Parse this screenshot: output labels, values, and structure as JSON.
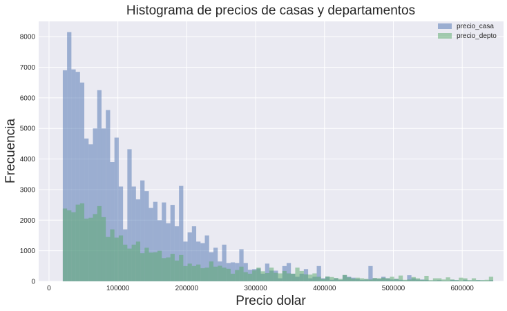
{
  "chart_data": {
    "type": "bar",
    "title": "Histograma de precios de casas y departamentos",
    "xlabel": "Precio dolar",
    "ylabel": "Frecuencia",
    "xlim": [
      -15000,
      660000
    ],
    "ylim": [
      0,
      8500
    ],
    "xticks": [
      0,
      100000,
      200000,
      300000,
      400000,
      500000,
      600000
    ],
    "xtick_labels": [
      "0",
      "100000",
      "200000",
      "300000",
      "400000",
      "500000",
      "600000"
    ],
    "yticks": [
      0,
      1000,
      2000,
      3000,
      4000,
      5000,
      6000,
      7000,
      8000
    ],
    "ytick_labels": [
      "0",
      "1000",
      "2000",
      "3000",
      "4000",
      "5000",
      "6000",
      "7000",
      "8000"
    ],
    "grid": true,
    "legend_position": "top-right",
    "bin_start": 20000,
    "bin_width": 6250,
    "series": [
      {
        "name": "precio_casa",
        "color": "#4c72b0",
        "opacity": 0.5,
        "values": [
          6900,
          8150,
          6930,
          6850,
          6500,
          4670,
          4480,
          5000,
          6250,
          5000,
          5600,
          3900,
          4700,
          3100,
          1700,
          4320,
          3100,
          2680,
          3300,
          2950,
          2400,
          2600,
          2000,
          2580,
          1900,
          2500,
          1800,
          3120,
          1300,
          1600,
          1800,
          1300,
          1250,
          1500,
          950,
          1100,
          650,
          1200,
          600,
          620,
          600,
          1050,
          600,
          380,
          400,
          420,
          250,
          580,
          350,
          350,
          100,
          500,
          600,
          250,
          150,
          250,
          400,
          100,
          150,
          500,
          100,
          150,
          50,
          100,
          50,
          200,
          150,
          120,
          80,
          50,
          60,
          500,
          100,
          80,
          150,
          100,
          60,
          80,
          50,
          30,
          200,
          100,
          60,
          60,
          50,
          20,
          30,
          40,
          20,
          20,
          50,
          40,
          20,
          50,
          30,
          30,
          40,
          30,
          20,
          40
        ]
      },
      {
        "name": "precio_depto",
        "color": "#55a868",
        "opacity": 0.5,
        "values": [
          2380,
          2320,
          2260,
          2510,
          2550,
          2050,
          2080,
          2200,
          2460,
          2100,
          1450,
          1700,
          1430,
          1500,
          1200,
          1070,
          1200,
          1300,
          920,
          1100,
          940,
          950,
          1000,
          760,
          780,
          900,
          680,
          860,
          500,
          580,
          500,
          550,
          430,
          450,
          650,
          480,
          510,
          450,
          410,
          250,
          370,
          480,
          300,
          250,
          360,
          450,
          330,
          270,
          450,
          280,
          260,
          340,
          260,
          250,
          450,
          340,
          230,
          220,
          260,
          150,
          80,
          160,
          140,
          110,
          80,
          210,
          130,
          90,
          120,
          100,
          80,
          60,
          110,
          100,
          120,
          100,
          150,
          80,
          190,
          50,
          60,
          140,
          100,
          50,
          180,
          40,
          100,
          100,
          60,
          130,
          60,
          40,
          120,
          100,
          40,
          100,
          40,
          40,
          50,
          150
        ]
      }
    ]
  }
}
